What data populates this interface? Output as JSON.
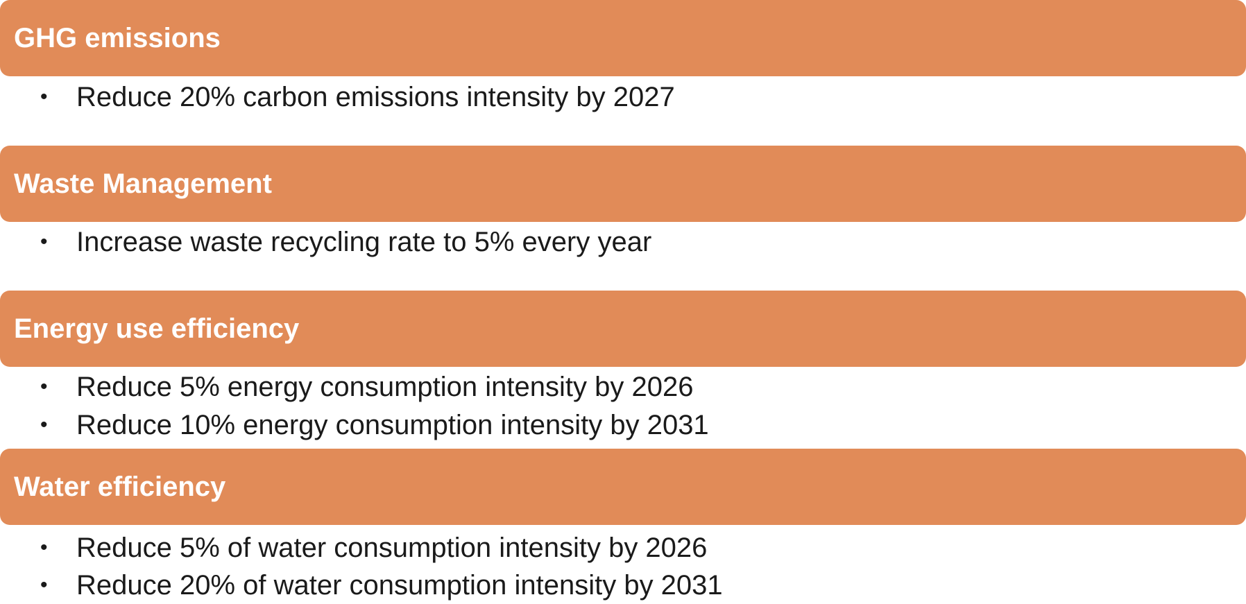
{
  "sections": [
    {
      "title": "GHG emissions",
      "items": [
        "Reduce 20% carbon emissions intensity by 2027"
      ]
    },
    {
      "title": "Waste Management",
      "items": [
        "Increase waste recycling rate to 5% every year"
      ]
    },
    {
      "title": "Energy use efficiency",
      "items": [
        "Reduce 5% energy consumption intensity by 2026",
        "Reduce 10% energy consumption intensity by 2031"
      ]
    },
    {
      "title": "Water efficiency",
      "items": [
        "Reduce 5% of water consumption intensity by 2026",
        "Reduce 20% of water consumption intensity by 2031"
      ]
    }
  ],
  "bullet_glyph": "•",
  "colors": {
    "header_bg": "#e18b58",
    "header_text": "#ffffff",
    "body_text": "#1a1a1a"
  }
}
